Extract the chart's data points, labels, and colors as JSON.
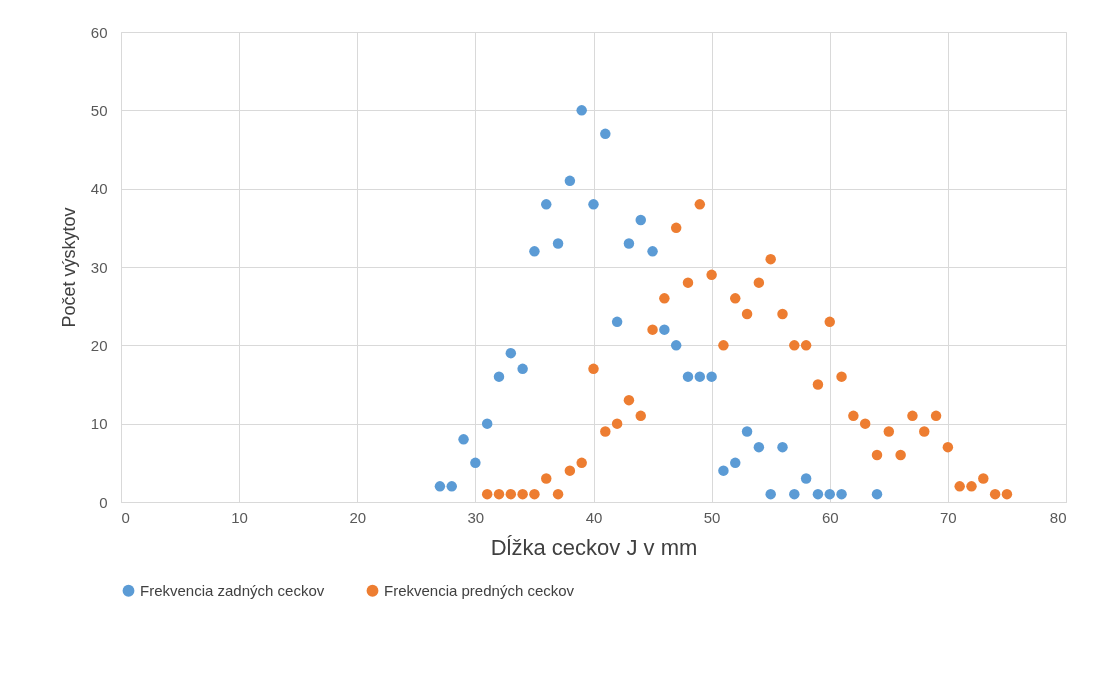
{
  "chart_data": {
    "type": "scatter",
    "xlabel": "Dĺžka ceckov J v mm",
    "ylabel": "Počet výskytov",
    "xlim": [
      0,
      80
    ],
    "xticks": [
      0,
      10,
      20,
      30,
      40,
      50,
      60,
      70,
      80
    ],
    "ylim": [
      0,
      60
    ],
    "yticks": [
      0,
      10,
      20,
      30,
      40,
      50,
      60
    ],
    "grid": true,
    "legend": "bottom",
    "marker": "circle",
    "series": [
      {
        "name": "Frekvencia zadných ceckov",
        "color": "#5b9bd5",
        "x": [
          27,
          28,
          29,
          30,
          31,
          32,
          33,
          34,
          35,
          36,
          37,
          38,
          39,
          40,
          41,
          42,
          43,
          44,
          45,
          46,
          47,
          48,
          49,
          50,
          51,
          52,
          53,
          54,
          55,
          56,
          57,
          58,
          59,
          60,
          61,
          64
        ],
        "values": [
          2,
          2,
          8,
          5,
          10,
          16,
          19,
          17,
          32,
          38,
          33,
          41,
          50,
          38,
          47,
          23,
          33,
          36,
          32,
          22,
          20,
          16,
          16,
          16,
          4,
          5,
          9,
          7,
          1,
          7,
          1,
          3,
          1,
          1,
          1,
          1
        ]
      },
      {
        "name": "Frekvencia predných ceckov",
        "color": "#ed7d31",
        "x": [
          31,
          32,
          33,
          34,
          35,
          36,
          37,
          38,
          39,
          40,
          41,
          42,
          43,
          44,
          45,
          46,
          47,
          48,
          49,
          50,
          51,
          52,
          53,
          54,
          55,
          56,
          57,
          58,
          59,
          60,
          61,
          62,
          63,
          64,
          65,
          66,
          67,
          68,
          69,
          70,
          71,
          72,
          73,
          74,
          75
        ],
        "values": [
          1,
          1,
          1,
          1,
          1,
          3,
          1,
          4,
          5,
          17,
          9,
          10,
          13,
          11,
          22,
          26,
          35,
          28,
          38,
          29,
          20,
          26,
          24,
          28,
          31,
          24,
          20,
          20,
          15,
          23,
          16,
          11,
          10,
          6,
          9,
          6,
          11,
          9,
          11,
          7,
          2,
          2,
          3,
          1,
          1
        ]
      }
    ]
  }
}
